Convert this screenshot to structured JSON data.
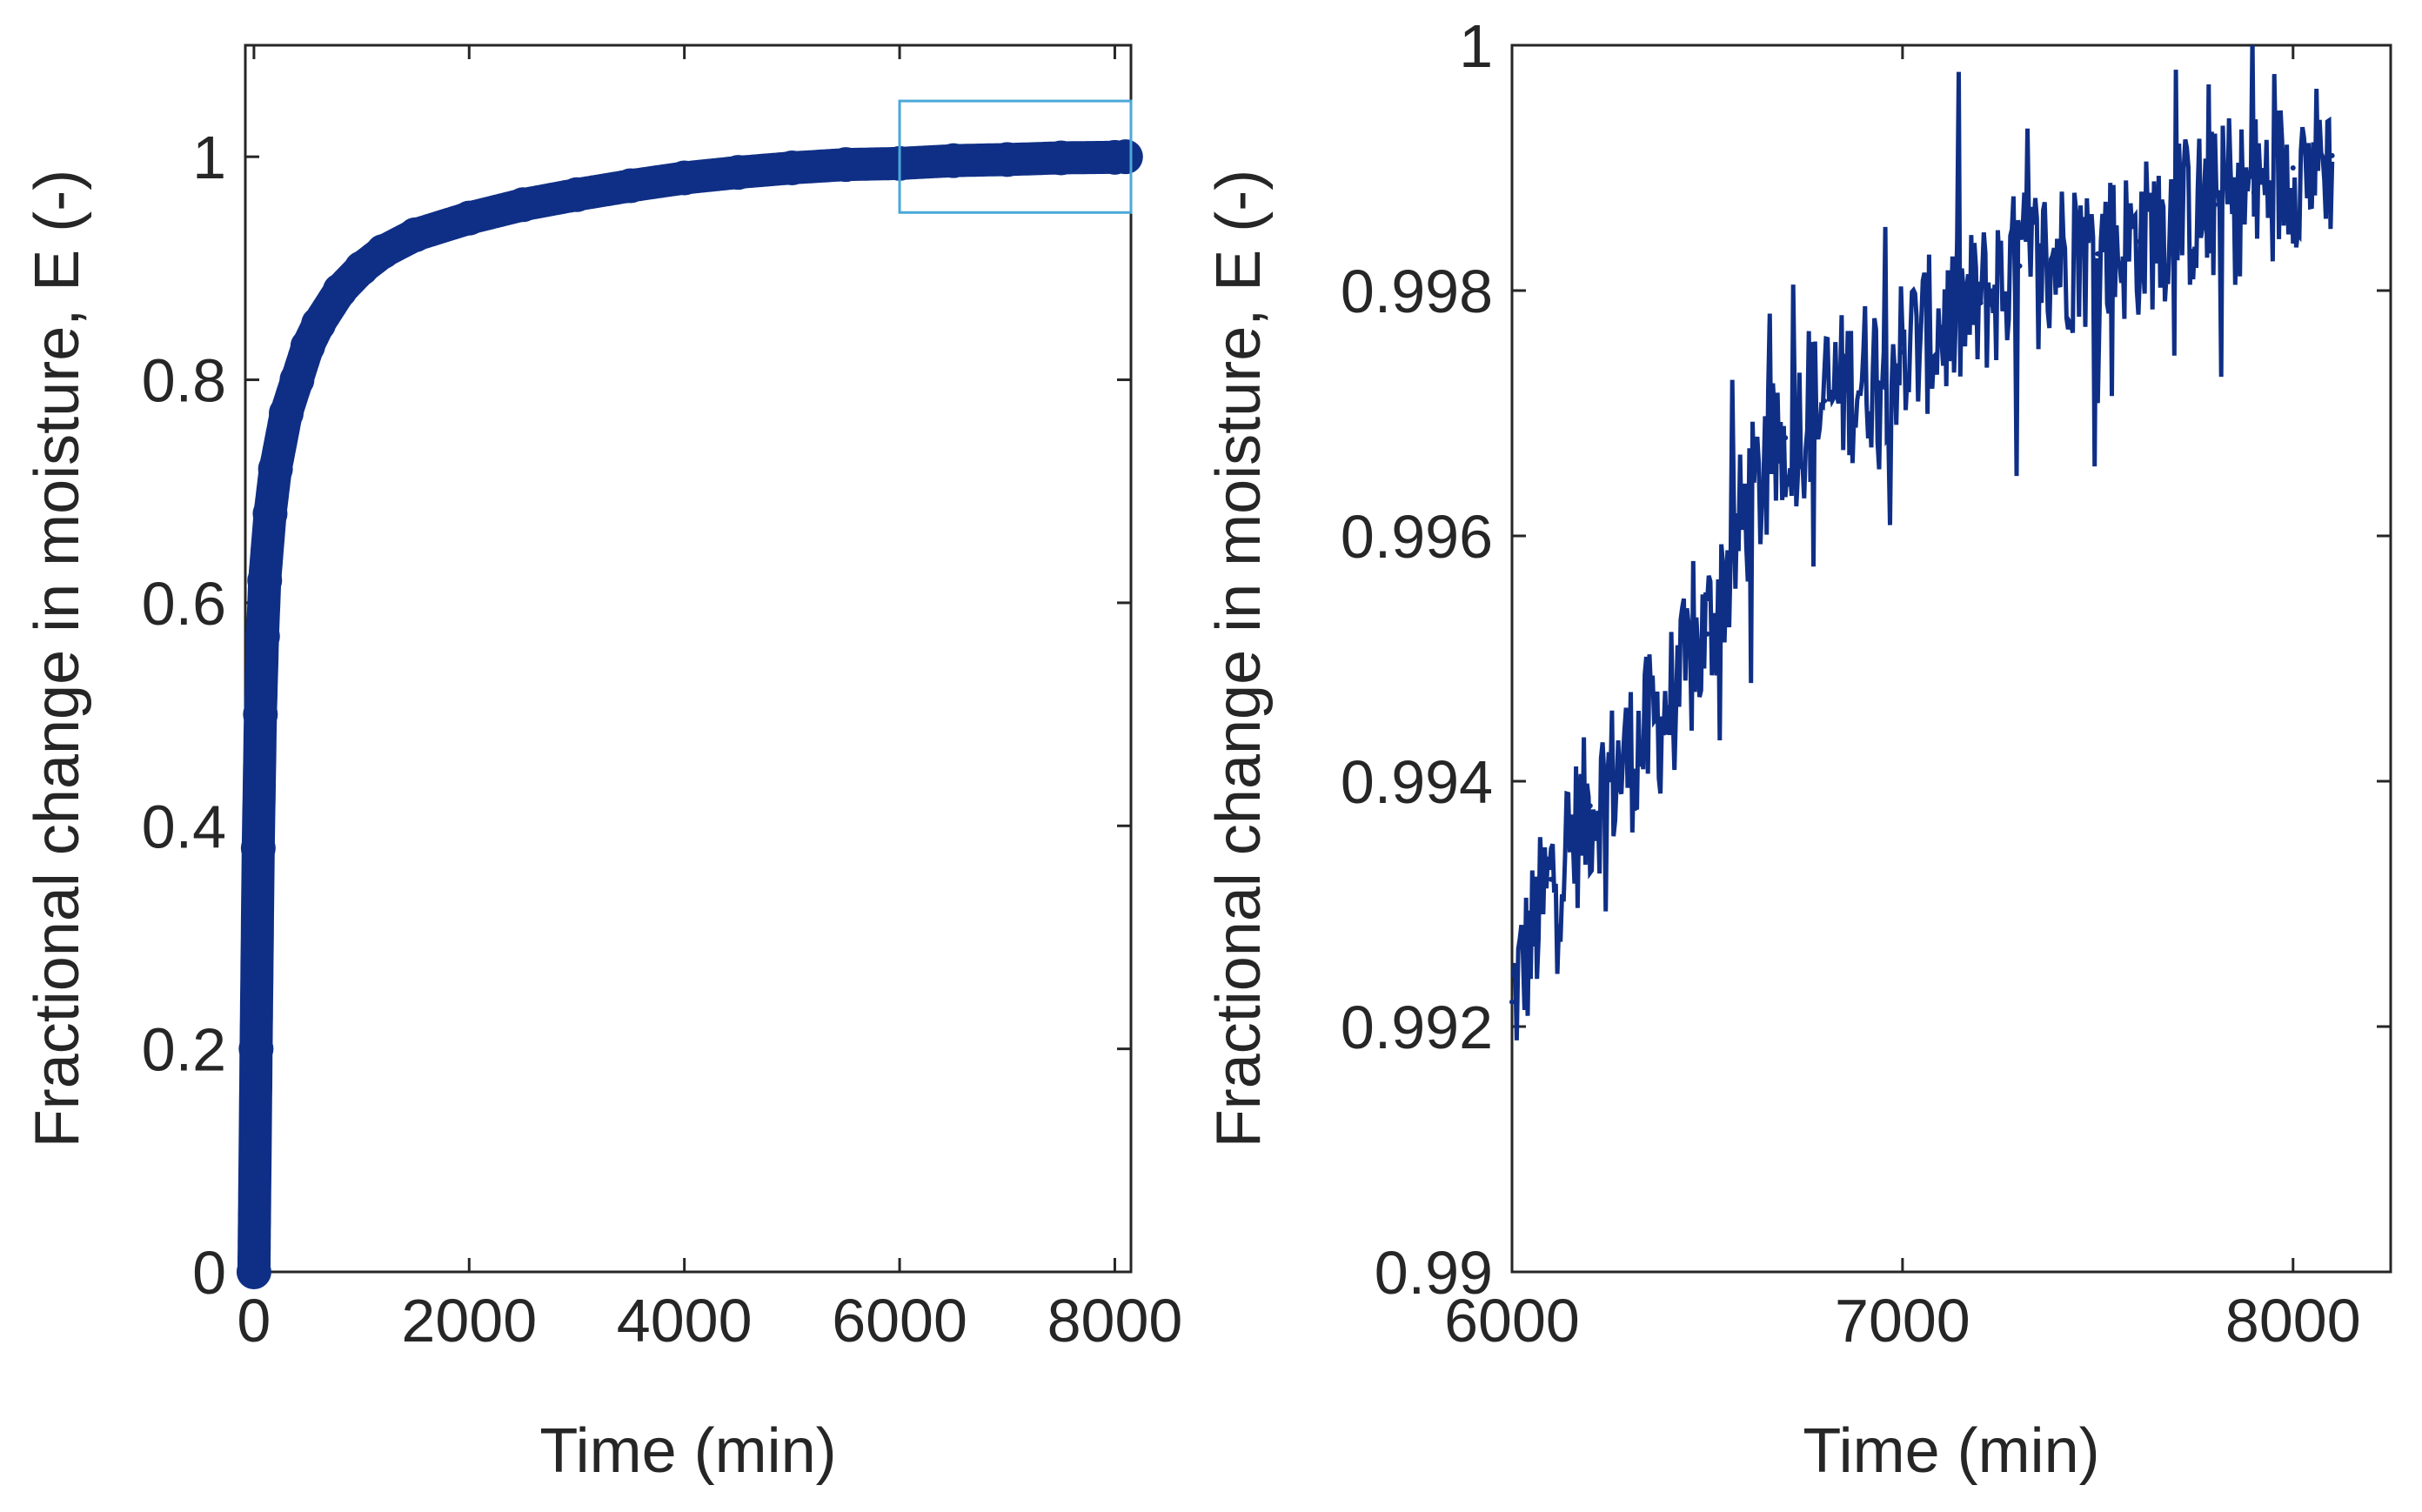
{
  "colors": {
    "series": "#0f2f86",
    "zoom_box": "#4aa8d8",
    "axis": "#262626",
    "background": "#ffffff"
  },
  "chart_data": [
    {
      "type": "line",
      "title": "",
      "xlabel": "Time (min)",
      "ylabel": "Fractional change in moisture, E (-)",
      "xlim": [
        -80,
        8150
      ],
      "ylim": [
        0,
        1.1
      ],
      "xticks": [
        0,
        2000,
        4000,
        6000,
        8000
      ],
      "xtick_labels": [
        "0",
        "2000",
        "4000",
        "6000",
        "8000"
      ],
      "yticks": [
        0,
        0.2,
        0.4,
        0.6,
        0.8,
        1
      ],
      "ytick_labels": [
        "0",
        "0.2",
        "0.4",
        "0.6",
        "0.8",
        "1"
      ],
      "series": [
        {
          "name": "E",
          "x": [
            0,
            20,
            40,
            60,
            80,
            100,
            150,
            200,
            300,
            400,
            500,
            600,
            800,
            1000,
            1200,
            1500,
            2000,
            2500,
            3000,
            3500,
            4000,
            4500,
            5000,
            5500,
            6000,
            6500,
            7000,
            7500,
            8000,
            8100
          ],
          "y": [
            0,
            0.2,
            0.38,
            0.5,
            0.57,
            0.62,
            0.68,
            0.72,
            0.77,
            0.8,
            0.83,
            0.85,
            0.88,
            0.9,
            0.915,
            0.93,
            0.945,
            0.957,
            0.966,
            0.974,
            0.981,
            0.986,
            0.99,
            0.993,
            0.994,
            0.9965,
            0.9975,
            0.999,
            0.9995,
            1.0
          ]
        }
      ],
      "annotations": [
        {
          "type": "zoom-box",
          "x_range": [
            6000,
            8150
          ],
          "y_range": [
            0.95,
            1.05
          ]
        }
      ]
    },
    {
      "type": "line",
      "title": "",
      "xlabel": "Time (min)",
      "ylabel": "Fractional change in moisture, E (-)",
      "xlim": [
        6000,
        8250
      ],
      "ylim": [
        0.99,
        1
      ],
      "xticks": [
        6000,
        7000,
        8000
      ],
      "xtick_labels": [
        "6000",
        "7000",
        "8000"
      ],
      "yticks": [
        0.99,
        0.992,
        0.994,
        0.996,
        0.998,
        1
      ],
      "ytick_labels": [
        "0.99",
        "0.992",
        "0.994",
        "0.996",
        "0.998",
        "1"
      ],
      "series": [
        {
          "name": "E",
          "x": [
            6000,
            6100,
            6200,
            6300,
            6400,
            6500,
            6600,
            6700,
            6800,
            6900,
            7000,
            7100,
            7200,
            7300,
            7400,
            7500,
            7600,
            7700,
            7800,
            7900,
            8000,
            8100
          ],
          "y": [
            0.9922,
            0.9932,
            0.9938,
            0.9942,
            0.9946,
            0.9952,
            0.9962,
            0.9968,
            0.9971,
            0.9973,
            0.9975,
            0.9977,
            0.9979,
            0.9982,
            0.9983,
            0.9983,
            0.9984,
            0.9986,
            0.9987,
            0.9988,
            0.999,
            0.9991
          ],
          "noise_amplitude": 0.0012
        }
      ]
    }
  ]
}
